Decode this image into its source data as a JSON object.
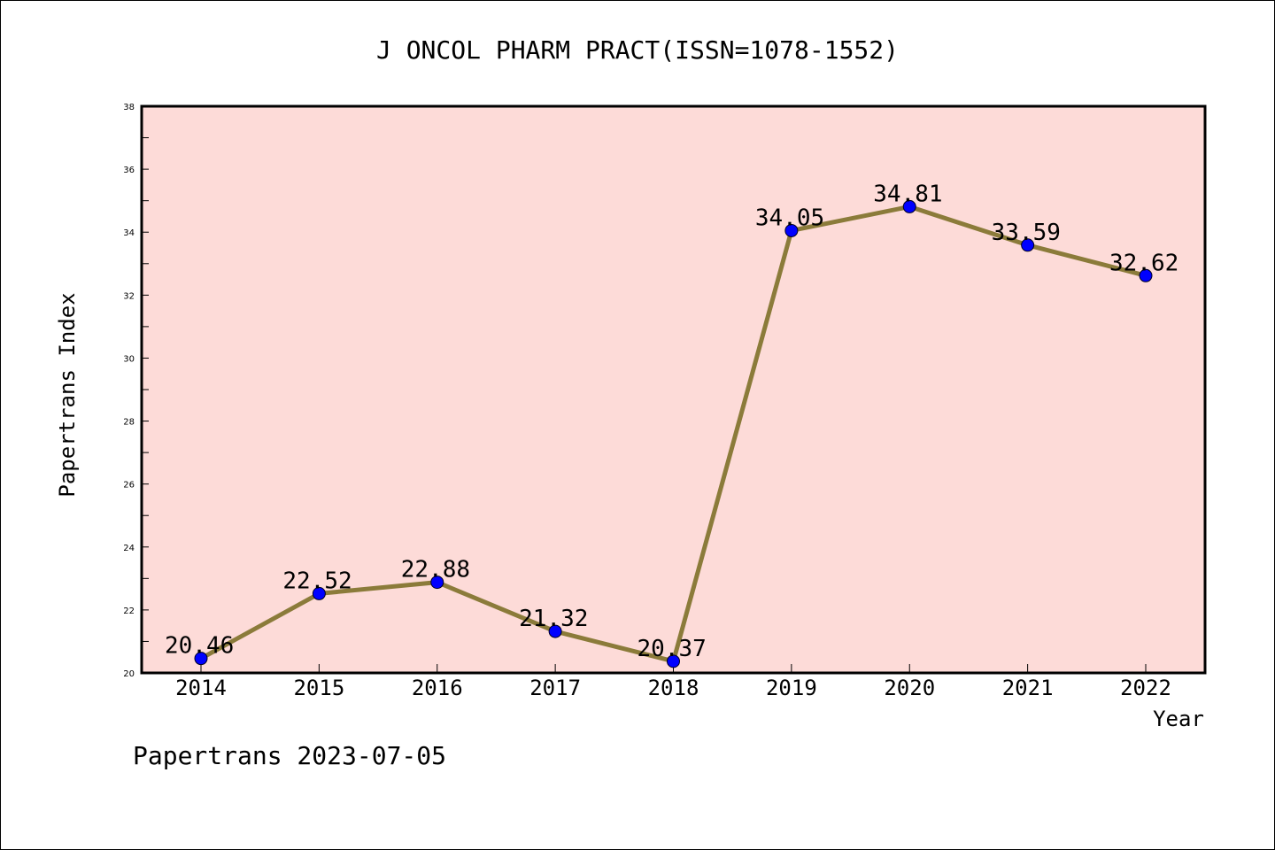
{
  "chart_data": {
    "type": "line",
    "title": "J ONCOL PHARM PRACT(ISSN=1078-1552)",
    "xlabel": "Year",
    "ylabel": "Papertrans Index",
    "categories": [
      "2014",
      "2015",
      "2016",
      "2017",
      "2018",
      "2019",
      "2020",
      "2021",
      "2022"
    ],
    "values": [
      20.46,
      22.52,
      22.88,
      21.32,
      20.37,
      34.05,
      34.81,
      33.59,
      32.62
    ],
    "data_labels": [
      "20.46",
      "22.52",
      "22.88",
      "21.32",
      "20.37",
      "34.05",
      "34.81",
      "33.59",
      "32.62"
    ],
    "ylim": [
      20,
      38
    ],
    "yticks": [
      20,
      22,
      24,
      26,
      28,
      30,
      32,
      34,
      36,
      38
    ],
    "ytick_labels": [
      "20",
      "22",
      "24",
      "26",
      "28",
      "30",
      "32",
      "34",
      "36",
      "38"
    ],
    "grid": false,
    "legend": "none",
    "colors": {
      "plot_background": "#fddbd8",
      "line": "#8b7b3a",
      "marker": "#0000ff",
      "axis": "#000000"
    }
  },
  "footer": "Papertrans 2023-07-05"
}
